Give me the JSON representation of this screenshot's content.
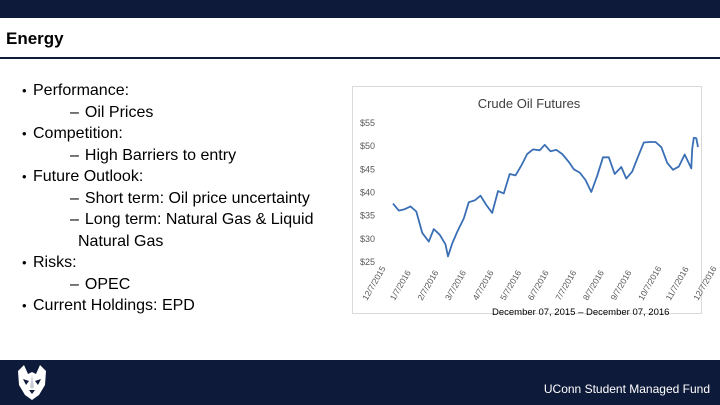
{
  "header": {
    "title": "Energy"
  },
  "bullets": [
    {
      "label": "Performance:",
      "subs": [
        "Oil Prices"
      ]
    },
    {
      "label": "Competition:",
      "subs": [
        "High Barriers to entry"
      ]
    },
    {
      "label": "Future Outlook:",
      "subs": [
        "Short term: Oil price uncertainty",
        "Long term: Natural Gas & Liquid|Natural Gas"
      ]
    },
    {
      "label": "Risks:",
      "subs": [
        "OPEC"
      ]
    },
    {
      "label": "Current Holdings: EPD",
      "subs": []
    }
  ],
  "caption": "December 07, 2015 – December 07, 2016",
  "footer": {
    "org": "UConn Student Managed Fund",
    "logo_icon": "husky-logo-icon"
  },
  "colors": {
    "navy": "#0e1a3a",
    "line": "#3b6fb5"
  },
  "chart_data": {
    "type": "line",
    "title": "Crude Oil Futures",
    "ylim": [
      25,
      55
    ],
    "yticks": [
      25,
      30,
      35,
      40,
      45,
      50,
      55
    ],
    "ytick_labels": [
      "$25",
      "$30",
      "$35",
      "$40",
      "$45",
      "$50",
      "$55"
    ],
    "xticks": [
      "12/7/2015",
      "1/7/2016",
      "2/7/2016",
      "3/7/2016",
      "4/7/2016",
      "5/7/2016",
      "6/7/2016",
      "7/7/2016",
      "8/7/2016",
      "9/7/2016",
      "10/7/2016",
      "11/7/2016",
      "12/7/2016"
    ],
    "grid": false,
    "legend": "none",
    "series": [
      {
        "x": [
          "2015-12-07",
          "2015-12-14",
          "2015-12-21",
          "2015-12-28",
          "2016-01-04",
          "2016-01-11",
          "2016-01-19",
          "2016-01-25",
          "2016-02-01",
          "2016-02-08",
          "2016-02-11",
          "2016-02-16",
          "2016-02-22",
          "2016-03-01",
          "2016-03-07",
          "2016-03-14",
          "2016-03-21",
          "2016-03-28",
          "2016-04-04",
          "2016-04-11",
          "2016-04-18",
          "2016-04-25",
          "2016-05-02",
          "2016-05-09",
          "2016-05-16",
          "2016-05-23",
          "2016-05-31",
          "2016-06-06",
          "2016-06-13",
          "2016-06-20",
          "2016-06-27",
          "2016-07-05",
          "2016-07-11",
          "2016-07-18",
          "2016-07-25",
          "2016-08-01",
          "2016-08-08",
          "2016-08-15",
          "2016-08-22",
          "2016-08-29",
          "2016-09-06",
          "2016-09-12",
          "2016-09-19",
          "2016-09-26",
          "2016-10-03",
          "2016-10-10",
          "2016-10-17",
          "2016-10-24",
          "2016-10-31",
          "2016-11-07",
          "2016-11-14",
          "2016-11-21",
          "2016-11-29",
          "2016-11-30",
          "2016-12-02",
          "2016-12-05",
          "2016-12-07"
        ],
        "y": [
          37.6,
          36.1,
          36.4,
          37.0,
          35.9,
          31.3,
          29.4,
          32.1,
          30.9,
          28.8,
          26.2,
          29.0,
          31.5,
          34.4,
          37.9,
          38.3,
          39.3,
          37.3,
          35.6,
          40.3,
          39.8,
          44.0,
          43.7,
          45.8,
          48.3,
          49.3,
          49.1,
          50.3,
          48.9,
          49.2,
          48.3,
          46.6,
          45.0,
          44.3,
          42.7,
          40.1,
          43.6,
          47.6,
          47.6,
          44.0,
          45.5,
          43.0,
          44.5,
          47.7,
          50.8,
          50.9,
          50.9,
          49.8,
          46.4,
          44.9,
          45.6,
          48.2,
          45.2,
          49.4,
          51.8,
          51.7,
          49.8
        ]
      }
    ]
  }
}
